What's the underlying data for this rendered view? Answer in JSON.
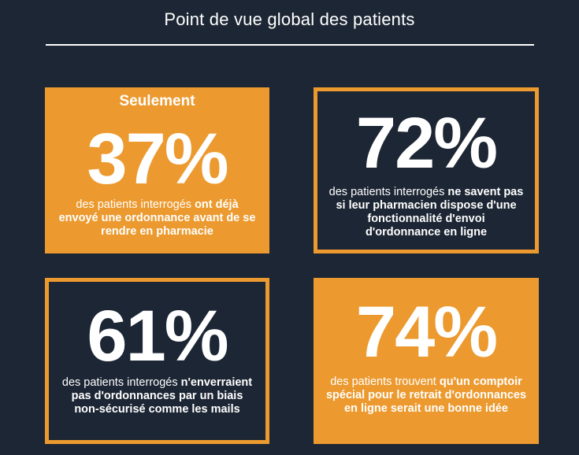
{
  "header": {
    "title": "Point de vue global des patients"
  },
  "colors": {
    "background": "#1d2634",
    "accent": "#ec9a2f",
    "text": "#ffffff"
  },
  "stats": [
    {
      "style": "filled",
      "prefix": "Seulement",
      "percent": "37%",
      "desc_plain": "des patients interrogés ",
      "desc_bold": "ont déjà envoyé une ordonnance avant de se rendre en pharmacie"
    },
    {
      "style": "outlined",
      "percent": "72%",
      "desc_plain": "des patients interrogés ",
      "desc_bold": "ne savent pas si leur pharmacien dispose d'une fonctionnalité d'envoi d'ordonnance en ligne"
    },
    {
      "style": "outlined",
      "percent": "61%",
      "desc_plain": "des patients interrogés ",
      "desc_bold": "n'enverraient pas d'ordonnances par un biais non-sécurisé comme les mails"
    },
    {
      "style": "filled",
      "percent": "74%",
      "desc_plain": "des patients trouvent ",
      "desc_bold": "qu'un comptoir spécial pour le retrait d'ordonnances en ligne serait une bonne idée"
    }
  ]
}
